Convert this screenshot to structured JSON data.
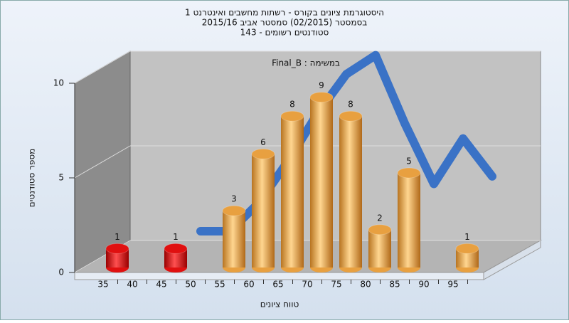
{
  "chart_data": {
    "type": "bar3d",
    "title": "היסטוגרמת ציונים בקורס - רשתות מחשבים ואינטרנט 1",
    "subtitle": "בסמסטר  (02/2015)  סמסטר אביב 2015/16",
    "subtitle2": "סטודנטים רשומים - 143",
    "annotation": "Final_B : במשימה",
    "x_label": "טווח ציונים",
    "y_label": "מספר סטודנטים",
    "categories": [
      "35",
      "40",
      "45",
      "50",
      "55",
      "60",
      "65",
      "70",
      "75",
      "80",
      "85",
      "90",
      "95"
    ],
    "values": [
      1,
      0,
      1,
      0,
      3,
      6,
      8,
      9,
      8,
      2,
      5,
      0,
      1
    ],
    "colors": [
      "#e01010",
      "#e01010",
      "#e01010",
      "#e01010",
      "#e8a040",
      "#e8a040",
      "#e8a040",
      "#e8a040",
      "#e8a040",
      "#e8a040",
      "#e8a040",
      "#e8a040",
      "#e8a040"
    ],
    "trend": {
      "color": "#3a72c6",
      "values": [
        null,
        null,
        0.3,
        0.3,
        1.8,
        4,
        6.5,
        8.6,
        9.6,
        6,
        2.8,
        5.2,
        3.2
      ]
    },
    "ylim": [
      0,
      10
    ],
    "yticks": [
      0,
      5,
      10
    ],
    "grid": true
  }
}
